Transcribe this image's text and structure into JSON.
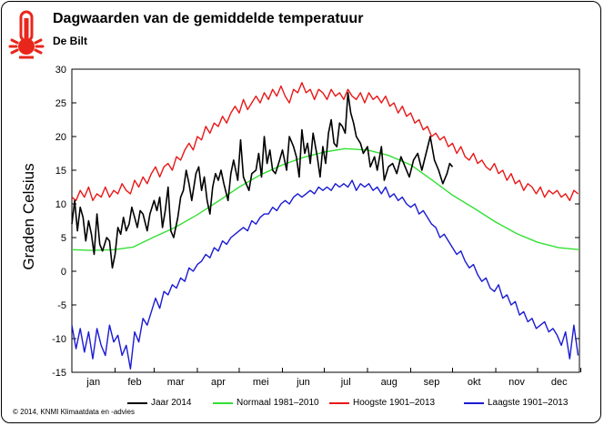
{
  "header": {
    "title": "Dagwaarden van de gemiddelde temperatuur",
    "subtitle": "De Bilt",
    "icon": "thermometer-icon"
  },
  "footer": {
    "copyright": "© 2014, KNMI Klimaatdata en -advies"
  },
  "colors": {
    "jaar": "#000000",
    "normaal": "#33e033",
    "hoogste": "#e81818",
    "laagste": "#1a1ad4",
    "icon": "#e8261b"
  },
  "chart_data": {
    "type": "line",
    "title": "Dagwaarden van de gemiddelde temperatuur",
    "subtitle": "De Bilt",
    "xlabel": "",
    "ylabel": "Graden Celsius",
    "ylim": [
      -15,
      30
    ],
    "xlim": [
      1,
      365
    ],
    "yticks": [
      -15,
      -10,
      -5,
      0,
      5,
      10,
      15,
      20,
      25,
      30
    ],
    "month_labels": [
      "jan",
      "feb",
      "mar",
      "apr",
      "mei",
      "jun",
      "jul",
      "aug",
      "sep",
      "okt",
      "nov",
      "dec"
    ],
    "grid": false,
    "legend_position": "bottom",
    "series": [
      {
        "name": "Jaar 2014",
        "key": "jaar",
        "x": [
          1,
          3,
          5,
          7,
          9,
          11,
          13,
          15,
          17,
          19,
          21,
          23,
          26,
          28,
          30,
          32,
          34,
          36,
          38,
          40,
          42,
          44,
          46,
          48,
          50,
          52,
          55,
          57,
          60,
          62,
          64,
          66,
          68,
          70,
          72,
          74,
          77,
          79,
          81,
          83,
          85,
          87,
          90,
          92,
          94,
          96,
          98,
          100,
          102,
          104,
          106,
          108,
          110,
          113,
          115,
          117,
          120,
          122,
          124,
          126,
          128,
          130,
          133,
          135,
          137,
          139,
          141,
          143,
          145,
          147,
          150,
          152,
          155,
          157,
          160,
          162,
          164,
          166,
          168,
          170,
          172,
          174,
          177,
          179,
          181,
          183,
          185,
          187,
          189,
          191,
          193,
          195,
          197,
          199,
          201,
          203,
          205,
          208,
          210,
          213,
          215,
          218,
          220,
          223,
          225,
          228,
          231,
          234,
          237,
          240,
          243,
          246,
          249,
          252,
          255,
          258,
          261,
          264,
          267,
          270,
          272,
          274
        ],
        "values": [
          7.0,
          10.5,
          6.0,
          9.5,
          8.0,
          4.5,
          7.5,
          5.5,
          2.5,
          8.5,
          4.0,
          3.0,
          5.0,
          4.5,
          0.5,
          2.5,
          6.5,
          5.5,
          8.0,
          6.0,
          7.0,
          9.5,
          8.0,
          6.5,
          9.0,
          8.5,
          6.0,
          8.5,
          10.5,
          9.0,
          11.0,
          6.5,
          9.0,
          12.5,
          6.0,
          5.0,
          8.0,
          11.0,
          12.0,
          15.0,
          13.0,
          10.5,
          14.5,
          15.5,
          12.0,
          14.0,
          10.5,
          8.5,
          12.5,
          14.5,
          13.5,
          15.0,
          13.0,
          10.5,
          14.5,
          16.5,
          13.5,
          19.5,
          14.0,
          13.0,
          12.0,
          14.5,
          15.0,
          17.5,
          14.0,
          20.0,
          16.0,
          18.0,
          15.0,
          14.5,
          16.5,
          18.0,
          15.0,
          20.0,
          18.5,
          17.0,
          14.0,
          21.0,
          17.5,
          19.0,
          16.0,
          20.5,
          17.0,
          14.0,
          18.5,
          16.0,
          20.5,
          22.5,
          19.0,
          18.5,
          22.0,
          21.5,
          20.5,
          26.5,
          23.5,
          22.0,
          20.0,
          19.0,
          17.5,
          18.5,
          15.5,
          17.0,
          15.0,
          18.5,
          13.5,
          15.5,
          16.0,
          14.5,
          17.0,
          15.5,
          14.0,
          16.5,
          17.5,
          15.0,
          17.5,
          20.0,
          16.5,
          15.0,
          13.0,
          14.5,
          16.0,
          15.5
        ]
      },
      {
        "name": "Normaal 1981–2010",
        "key": "normaal",
        "x": [
          1,
          15,
          31,
          45,
          59,
          75,
          91,
          106,
          121,
          136,
          152,
          167,
          182,
          197,
          213,
          228,
          244,
          259,
          274,
          289,
          305,
          320,
          335,
          350,
          365
        ],
        "values": [
          3.2,
          3.1,
          3.2,
          3.6,
          5.0,
          6.5,
          8.4,
          10.4,
          12.5,
          14.3,
          15.8,
          16.9,
          17.7,
          18.2,
          18.0,
          17.2,
          15.8,
          13.6,
          11.3,
          9.4,
          7.3,
          5.6,
          4.3,
          3.5,
          3.2
        ]
      },
      {
        "name": "Hoogste 1901–2013",
        "key": "hoogste",
        "x": [
          1,
          4,
          7,
          10,
          13,
          16,
          19,
          22,
          25,
          28,
          31,
          34,
          37,
          40,
          43,
          46,
          49,
          52,
          55,
          58,
          61,
          64,
          67,
          70,
          73,
          76,
          79,
          82,
          85,
          88,
          91,
          94,
          97,
          100,
          103,
          106,
          109,
          112,
          115,
          118,
          121,
          124,
          127,
          130,
          133,
          136,
          139,
          142,
          145,
          148,
          151,
          154,
          157,
          160,
          163,
          166,
          169,
          172,
          175,
          178,
          181,
          184,
          187,
          190,
          193,
          196,
          199,
          202,
          205,
          208,
          211,
          214,
          217,
          220,
          223,
          226,
          229,
          232,
          235,
          238,
          241,
          244,
          247,
          250,
          253,
          256,
          259,
          262,
          265,
          268,
          271,
          274,
          277,
          280,
          283,
          286,
          289,
          292,
          295,
          298,
          301,
          304,
          307,
          310,
          313,
          316,
          319,
          322,
          325,
          328,
          331,
          334,
          337,
          340,
          343,
          346,
          349,
          352,
          355,
          358,
          361,
          364
        ],
        "values": [
          11.0,
          10.5,
          12.0,
          11.0,
          12.5,
          10.5,
          11.5,
          11.0,
          12.5,
          11.0,
          12.0,
          11.5,
          13.0,
          12.0,
          11.5,
          13.5,
          12.5,
          14.0,
          13.0,
          14.5,
          15.5,
          14.0,
          15.5,
          16.0,
          15.0,
          17.0,
          16.5,
          18.0,
          19.0,
          18.0,
          20.0,
          19.5,
          21.5,
          20.5,
          22.0,
          21.5,
          23.0,
          22.0,
          23.5,
          24.5,
          23.5,
          25.5,
          24.0,
          25.0,
          26.0,
          25.0,
          26.5,
          25.5,
          27.0,
          26.0,
          27.5,
          26.0,
          25.0,
          27.0,
          26.5,
          28.0,
          26.5,
          27.0,
          25.5,
          27.0,
          26.5,
          25.5,
          27.0,
          26.0,
          26.5,
          25.5,
          27.0,
          26.0,
          25.5,
          26.5,
          25.0,
          26.5,
          25.5,
          26.0,
          25.0,
          26.0,
          24.5,
          25.0,
          23.5,
          24.5,
          23.0,
          23.5,
          22.0,
          22.5,
          21.0,
          21.5,
          20.0,
          20.5,
          19.5,
          20.0,
          18.5,
          19.0,
          17.5,
          18.5,
          17.0,
          16.5,
          17.5,
          16.0,
          16.5,
          15.5,
          15.0,
          16.0,
          14.5,
          15.0,
          13.5,
          14.5,
          13.0,
          13.5,
          12.0,
          13.0,
          12.5,
          11.5,
          12.5,
          11.0,
          12.0,
          11.5,
          12.0,
          11.0,
          11.5,
          10.5,
          12.0,
          11.5
        ]
      },
      {
        "name": "Laagste 1901–2013",
        "key": "laagste",
        "x": [
          1,
          4,
          7,
          10,
          13,
          16,
          19,
          22,
          25,
          28,
          31,
          34,
          37,
          40,
          43,
          46,
          49,
          52,
          55,
          58,
          61,
          64,
          67,
          70,
          73,
          76,
          79,
          82,
          85,
          88,
          91,
          94,
          97,
          100,
          103,
          106,
          109,
          112,
          115,
          118,
          121,
          124,
          127,
          130,
          133,
          136,
          139,
          142,
          145,
          148,
          151,
          154,
          157,
          160,
          163,
          166,
          169,
          172,
          175,
          178,
          181,
          184,
          187,
          190,
          193,
          196,
          199,
          202,
          205,
          208,
          211,
          214,
          217,
          220,
          223,
          226,
          229,
          232,
          235,
          238,
          241,
          244,
          247,
          250,
          253,
          256,
          259,
          262,
          265,
          268,
          271,
          274,
          277,
          280,
          283,
          286,
          289,
          292,
          295,
          298,
          301,
          304,
          307,
          310,
          313,
          316,
          319,
          322,
          325,
          328,
          331,
          334,
          337,
          340,
          343,
          346,
          349,
          352,
          355,
          358,
          361,
          364
        ],
        "values": [
          -8.0,
          -11.5,
          -8.5,
          -12.0,
          -9.0,
          -13.0,
          -8.5,
          -11.0,
          -12.5,
          -8.0,
          -10.5,
          -9.5,
          -12.5,
          -11.0,
          -14.5,
          -9.0,
          -10.5,
          -7.0,
          -8.0,
          -6.0,
          -4.0,
          -5.5,
          -3.0,
          -3.5,
          -2.0,
          -2.5,
          -1.0,
          -1.5,
          0.5,
          0.0,
          1.0,
          1.5,
          2.5,
          2.0,
          3.5,
          3.0,
          4.5,
          4.0,
          5.0,
          5.5,
          6.0,
          6.5,
          6.0,
          7.5,
          7.0,
          8.0,
          8.5,
          8.5,
          9.5,
          9.0,
          10.0,
          10.5,
          10.0,
          11.0,
          11.5,
          11.0,
          11.5,
          12.0,
          11.5,
          12.5,
          12.0,
          12.5,
          12.0,
          13.0,
          12.5,
          13.0,
          12.5,
          13.5,
          12.0,
          13.0,
          12.5,
          13.0,
          12.0,
          12.5,
          11.5,
          12.5,
          11.0,
          11.5,
          10.5,
          11.0,
          10.0,
          9.5,
          10.0,
          8.5,
          9.0,
          8.0,
          7.0,
          6.5,
          5.0,
          5.5,
          4.5,
          3.5,
          2.5,
          3.0,
          1.5,
          0.5,
          1.0,
          -0.5,
          -1.5,
          -1.0,
          -2.5,
          -3.0,
          -2.0,
          -4.0,
          -3.5,
          -5.0,
          -4.5,
          -6.5,
          -6.0,
          -7.5,
          -7.0,
          -8.5,
          -8.0,
          -7.5,
          -9.0,
          -8.5,
          -9.5,
          -11.0,
          -9.0,
          -13.0,
          -8.0,
          -12.5
        ]
      }
    ]
  }
}
